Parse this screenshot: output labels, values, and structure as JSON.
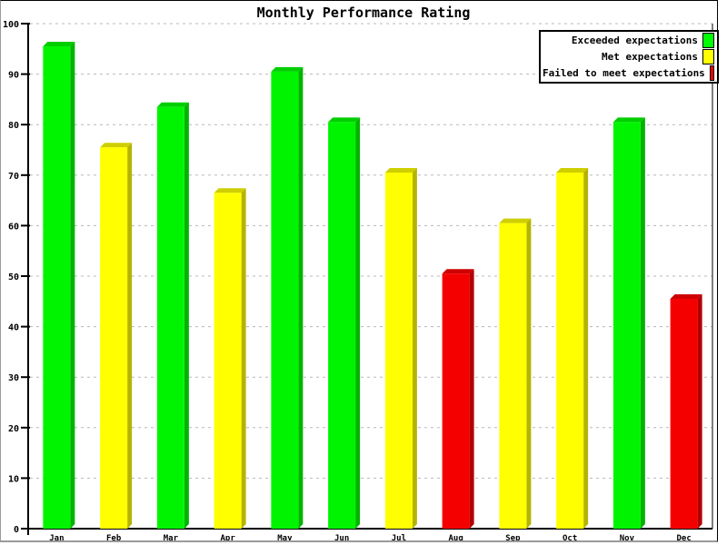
{
  "chart_data": {
    "type": "bar",
    "title": "Monthly Performance Rating",
    "xlabel": "",
    "ylabel": "",
    "categories": [
      "Jan",
      "Feb",
      "Mar",
      "Apr",
      "May",
      "Jun",
      "Jul",
      "Aug",
      "Sep",
      "Oct",
      "Nov",
      "Dec"
    ],
    "values": [
      95.5,
      75.5,
      83.5,
      66.5,
      90.5,
      80.5,
      70.5,
      50.5,
      60.5,
      70.5,
      80.5,
      45.5
    ],
    "bar_status": [
      "exceeded",
      "met",
      "exceeded",
      "met",
      "exceeded",
      "exceeded",
      "met",
      "failed",
      "met",
      "met",
      "exceeded",
      "failed"
    ],
    "ylim": [
      0,
      100
    ],
    "yticks": [
      0,
      10,
      20,
      30,
      40,
      50,
      60,
      70,
      80,
      90,
      100
    ],
    "grid": "horizontal-dashed",
    "grid_color": "#b8b8b8",
    "background": "#ffffff",
    "legend": {
      "position": "top-right",
      "items": [
        {
          "label": "Exceeded expectations",
          "color": "#00ff00",
          "status": "exceeded"
        },
        {
          "label": "Met expectations",
          "color": "#ffff00",
          "status": "met"
        },
        {
          "label": "Failed to meet expectations",
          "color": "#ff0000",
          "status": "failed"
        }
      ]
    },
    "colors": {
      "exceeded": {
        "face": "#00f400",
        "top": "#00ce00",
        "side": "#00b400"
      },
      "met": {
        "face": "#ffff00",
        "top": "#cece00",
        "side": "#b4b400"
      },
      "failed": {
        "face": "#f40000",
        "top": "#ce0000",
        "side": "#b40000"
      }
    }
  }
}
